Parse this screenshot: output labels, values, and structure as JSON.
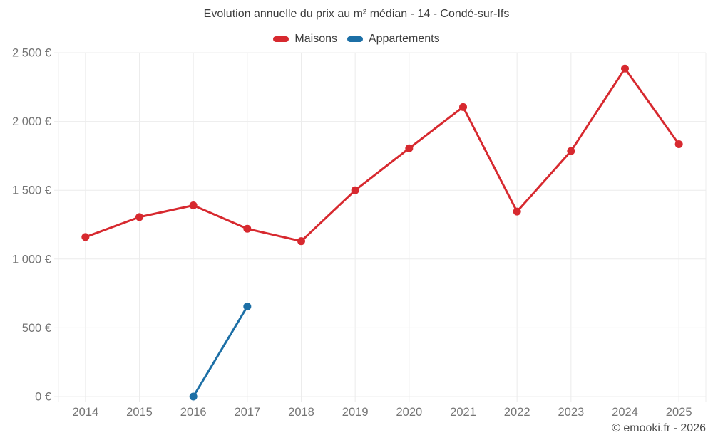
{
  "watermark": "© emooki.fr - 2026",
  "chart_data": {
    "type": "line",
    "title": "Evolution annuelle du prix au m² médian - 14 - Condé-sur-Ifs",
    "categories": [
      "2014",
      "2015",
      "2016",
      "2017",
      "2018",
      "2019",
      "2020",
      "2021",
      "2022",
      "2023",
      "2024",
      "2025"
    ],
    "series": [
      {
        "name": "Maisons",
        "color": "#d7292f",
        "values": [
          1160,
          1305,
          1390,
          1220,
          1130,
          1500,
          1805,
          2105,
          1345,
          1785,
          2385,
          1835
        ]
      },
      {
        "name": "Appartements",
        "color": "#1c6fa6",
        "values": [
          null,
          null,
          0,
          655,
          null,
          null,
          null,
          null,
          null,
          null,
          null,
          null
        ]
      }
    ],
    "xlabel": "",
    "ylabel": "",
    "ylim": [
      0,
      2500
    ],
    "yticks": [
      {
        "value": 0,
        "label": "0 €"
      },
      {
        "value": 500,
        "label": "500 €"
      },
      {
        "value": 1000,
        "label": "1 000 €"
      },
      {
        "value": 1500,
        "label": "1 500 €"
      },
      {
        "value": 2000,
        "label": "2 000 €"
      },
      {
        "value": 2500,
        "label": "2 500 €"
      }
    ],
    "grid": true,
    "grid_color": "#ececec",
    "tick_color": "#757575",
    "legend_position": "top"
  }
}
